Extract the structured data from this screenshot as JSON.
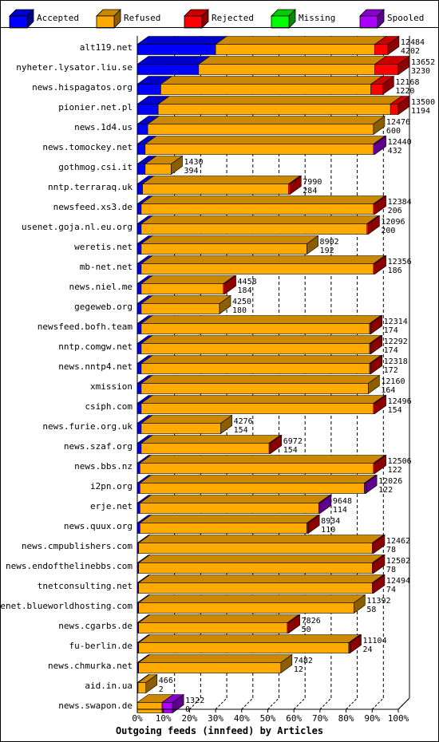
{
  "chart_data": {
    "type": "bar",
    "orientation": "horizontal",
    "stacked": true,
    "xlabel": "Outgoing feeds (innfeed) by Articles",
    "xlim": [
      0,
      100
    ],
    "x_unit": "%",
    "x_ticks": [
      "0%",
      "10%",
      "20%",
      "30%",
      "40%",
      "50%",
      "60%",
      "70%",
      "80%",
      "90%",
      "100%"
    ],
    "grid": "vertical dashed",
    "legend_position": "top",
    "legend": [
      {
        "name": "Accepted",
        "color": "#0000ff"
      },
      {
        "name": "Refused",
        "color": "#ffaa00"
      },
      {
        "name": "Rejected",
        "color": "#ff0000"
      },
      {
        "name": "Missing",
        "color": "#00ff00"
      },
      {
        "name": "Spooled",
        "color": "#aa00ff"
      }
    ],
    "rows": [
      {
        "label": "alt119.net",
        "total": "12484",
        "accepted": "4202",
        "segments_pct": {
          "accepted": 30.0,
          "refused": 61.0,
          "rejected": 5.0,
          "missing": 0,
          "spooled": 0
        }
      },
      {
        "label": "nyheter.lysator.liu.se",
        "total": "13652",
        "accepted": "3230",
        "segments_pct": {
          "accepted": 23.5,
          "refused": 67.5,
          "rejected": 9.0,
          "missing": 0,
          "spooled": 0
        }
      },
      {
        "label": "news.hispagatos.org",
        "total": "12168",
        "accepted": "1220",
        "segments_pct": {
          "accepted": 9.0,
          "refused": 80.5,
          "rejected": 4.5,
          "missing": 0,
          "spooled": 0
        }
      },
      {
        "label": "pionier.net.pl",
        "total": "13500",
        "accepted": "1194",
        "segments_pct": {
          "accepted": 8.0,
          "refused": 89.0,
          "rejected": 3.0,
          "missing": 0,
          "spooled": 0
        }
      },
      {
        "label": "news.1d4.us",
        "total": "12476",
        "accepted": "600",
        "segments_pct": {
          "accepted": 4.0,
          "refused": 86.5,
          "rejected": 0,
          "missing": 0,
          "spooled": 0
        }
      },
      {
        "label": "news.tomockey.net",
        "total": "12440",
        "accepted": "432",
        "segments_pct": {
          "accepted": 3.0,
          "refused": 87.5,
          "rejected": 0,
          "missing": 0,
          "spooled": 0.5
        }
      },
      {
        "label": "gothmog.csi.it",
        "total": "1430",
        "accepted": "394",
        "segments_pct": {
          "accepted": 3.0,
          "refused": 10.0,
          "rejected": 0,
          "missing": 0,
          "spooled": 0
        }
      },
      {
        "label": "nntp.terraraq.uk",
        "total": "7990",
        "accepted": "284",
        "segments_pct": {
          "accepted": 2.0,
          "refused": 56.0,
          "rejected": 0.5,
          "missing": 0,
          "spooled": 0
        }
      },
      {
        "label": "newsfeed.xs3.de",
        "total": "12384",
        "accepted": "206",
        "segments_pct": {
          "accepted": 1.5,
          "refused": 89.0,
          "rejected": 0.5,
          "missing": 0,
          "spooled": 0
        }
      },
      {
        "label": "usenet.goja.nl.eu.org",
        "total": "12096",
        "accepted": "200",
        "segments_pct": {
          "accepted": 1.5,
          "refused": 86.5,
          "rejected": 0.5,
          "missing": 0,
          "spooled": 0
        }
      },
      {
        "label": "weretis.net",
        "total": "8902",
        "accepted": "192",
        "segments_pct": {
          "accepted": 1.5,
          "refused": 63.5,
          "rejected": 0,
          "missing": 0,
          "spooled": 0
        }
      },
      {
        "label": "mb-net.net",
        "total": "12356",
        "accepted": "186",
        "segments_pct": {
          "accepted": 1.5,
          "refused": 89.0,
          "rejected": 0.5,
          "missing": 0,
          "spooled": 0
        }
      },
      {
        "label": "news.niel.me",
        "total": "4458",
        "accepted": "184",
        "segments_pct": {
          "accepted": 1.5,
          "refused": 31.5,
          "rejected": 0.5,
          "missing": 0,
          "spooled": 0
        }
      },
      {
        "label": "gegeweb.org",
        "total": "4250",
        "accepted": "180",
        "segments_pct": {
          "accepted": 1.5,
          "refused": 30.0,
          "rejected": 0,
          "missing": 0,
          "spooled": 0
        }
      },
      {
        "label": "newsfeed.bofh.team",
        "total": "12314",
        "accepted": "174",
        "segments_pct": {
          "accepted": 1.5,
          "refused": 87.5,
          "rejected": 0.5,
          "missing": 0,
          "spooled": 0
        }
      },
      {
        "label": "nntp.comgw.net",
        "total": "12292",
        "accepted": "174",
        "segments_pct": {
          "accepted": 1.5,
          "refused": 87.5,
          "rejected": 0.5,
          "missing": 0,
          "spooled": 0
        }
      },
      {
        "label": "news.nntp4.net",
        "total": "12318",
        "accepted": "172",
        "segments_pct": {
          "accepted": 1.5,
          "refused": 87.5,
          "rejected": 0.5,
          "missing": 0,
          "spooled": 0
        }
      },
      {
        "label": "xmission",
        "total": "12160",
        "accepted": "164",
        "segments_pct": {
          "accepted": 1.5,
          "refused": 87.0,
          "rejected": 0,
          "missing": 0,
          "spooled": 0
        }
      },
      {
        "label": "csiph.com",
        "total": "12496",
        "accepted": "154",
        "segments_pct": {
          "accepted": 1.5,
          "refused": 89.0,
          "rejected": 0.5,
          "missing": 0,
          "spooled": 0
        }
      },
      {
        "label": "news.furie.org.uk",
        "total": "4276",
        "accepted": "154",
        "segments_pct": {
          "accepted": 1.5,
          "refused": 30.5,
          "rejected": 0,
          "missing": 0,
          "spooled": 0
        }
      },
      {
        "label": "news.szaf.org",
        "total": "6972",
        "accepted": "154",
        "segments_pct": {
          "accepted": 1.5,
          "refused": 49.0,
          "rejected": 0.5,
          "missing": 0,
          "spooled": 0
        }
      },
      {
        "label": "news.bbs.nz",
        "total": "12506",
        "accepted": "122",
        "segments_pct": {
          "accepted": 1.0,
          "refused": 89.5,
          "rejected": 0.5,
          "missing": 0,
          "spooled": 0
        }
      },
      {
        "label": "i2pn.org",
        "total": "12026",
        "accepted": "122",
        "segments_pct": {
          "accepted": 1.0,
          "refused": 86.0,
          "rejected": 0,
          "missing": 0,
          "spooled": 0.5
        }
      },
      {
        "label": "erje.net",
        "total": "9648",
        "accepted": "114",
        "segments_pct": {
          "accepted": 1.0,
          "refused": 68.5,
          "rejected": 0,
          "missing": 0,
          "spooled": 0.5
        }
      },
      {
        "label": "news.quux.org",
        "total": "8934",
        "accepted": "110",
        "segments_pct": {
          "accepted": 1.0,
          "refused": 64.0,
          "rejected": 0.5,
          "missing": 0,
          "spooled": 0
        }
      },
      {
        "label": "news.cmpublishers.com",
        "total": "12462",
        "accepted": "78",
        "segments_pct": {
          "accepted": 0.5,
          "refused": 89.5,
          "rejected": 0.5,
          "missing": 0,
          "spooled": 0
        }
      },
      {
        "label": "news.endofthelinebbs.com",
        "total": "12502",
        "accepted": "78",
        "segments_pct": {
          "accepted": 0.5,
          "refused": 89.5,
          "rejected": 0.5,
          "missing": 0,
          "spooled": 0
        }
      },
      {
        "label": "tnetconsulting.net",
        "total": "12494",
        "accepted": "74",
        "segments_pct": {
          "accepted": 0.5,
          "refused": 89.5,
          "rejected": 0.5,
          "missing": 0,
          "spooled": 0
        }
      },
      {
        "label": "usenet.blueworldhosting.com",
        "total": "11392",
        "accepted": "58",
        "segments_pct": {
          "accepted": 0.5,
          "refused": 82.5,
          "rejected": 0,
          "missing": 0,
          "spooled": 0
        }
      },
      {
        "label": "news.cgarbs.de",
        "total": "7826",
        "accepted": "50",
        "segments_pct": {
          "accepted": 0.5,
          "refused": 57.0,
          "rejected": 0.5,
          "missing": 0,
          "spooled": 0
        }
      },
      {
        "label": "fu-berlin.de",
        "total": "11104",
        "accepted": "24",
        "segments_pct": {
          "accepted": 0.5,
          "refused": 80.5,
          "rejected": 0.5,
          "missing": 0,
          "spooled": 0
        }
      },
      {
        "label": "news.chmurka.net",
        "total": "7482",
        "accepted": "12",
        "segments_pct": {
          "accepted": 0.5,
          "refused": 54.5,
          "rejected": 0,
          "missing": 0,
          "spooled": 0
        }
      },
      {
        "label": "aid.in.ua",
        "total": "466",
        "accepted": "2",
        "segments_pct": {
          "accepted": 0.3,
          "refused": 3.0,
          "rejected": 0,
          "missing": 0,
          "spooled": 0
        }
      },
      {
        "label": "news.swapon.de",
        "total": "1322",
        "accepted": "0",
        "segments_pct": {
          "accepted": 0,
          "refused": 9.5,
          "rejected": 0,
          "missing": 0,
          "spooled": 4.0
        }
      }
    ]
  }
}
